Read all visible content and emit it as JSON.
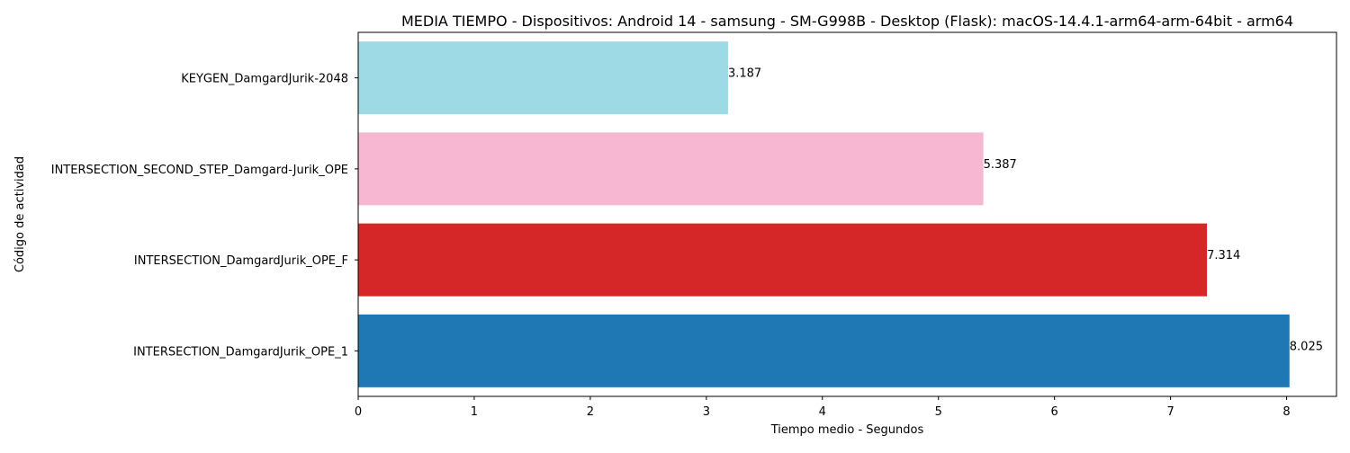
{
  "chart_data": {
    "type": "bar",
    "orientation": "horizontal",
    "title": "MEDIA TIEMPO - Dispositivos: Android 14 - samsung - SM-G998B - Desktop (Flask): macOS-14.4.1-arm64-arm-64bit - arm64",
    "xlabel": "Tiempo medio - Segundos",
    "ylabel": "Código de actividad",
    "xlim": [
      0,
      8.43
    ],
    "xticks": [
      0,
      1,
      2,
      3,
      4,
      5,
      6,
      7,
      8
    ],
    "grid": false,
    "categories": [
      "INTERSECTION_DamgardJurik_OPE_1",
      "INTERSECTION_DamgardJurik_OPE_F",
      "INTERSECTION_SECOND_STEP_Damgard-Jurik_OPE",
      "KEYGEN_DamgardJurik-2048"
    ],
    "values": [
      8.025,
      7.314,
      5.387,
      3.187
    ],
    "value_labels": [
      "8.025",
      "7.314",
      "5.387",
      "3.187"
    ],
    "colors": [
      "#1f77b4",
      "#d62728",
      "#f7b6d2",
      "#9edae5"
    ]
  }
}
